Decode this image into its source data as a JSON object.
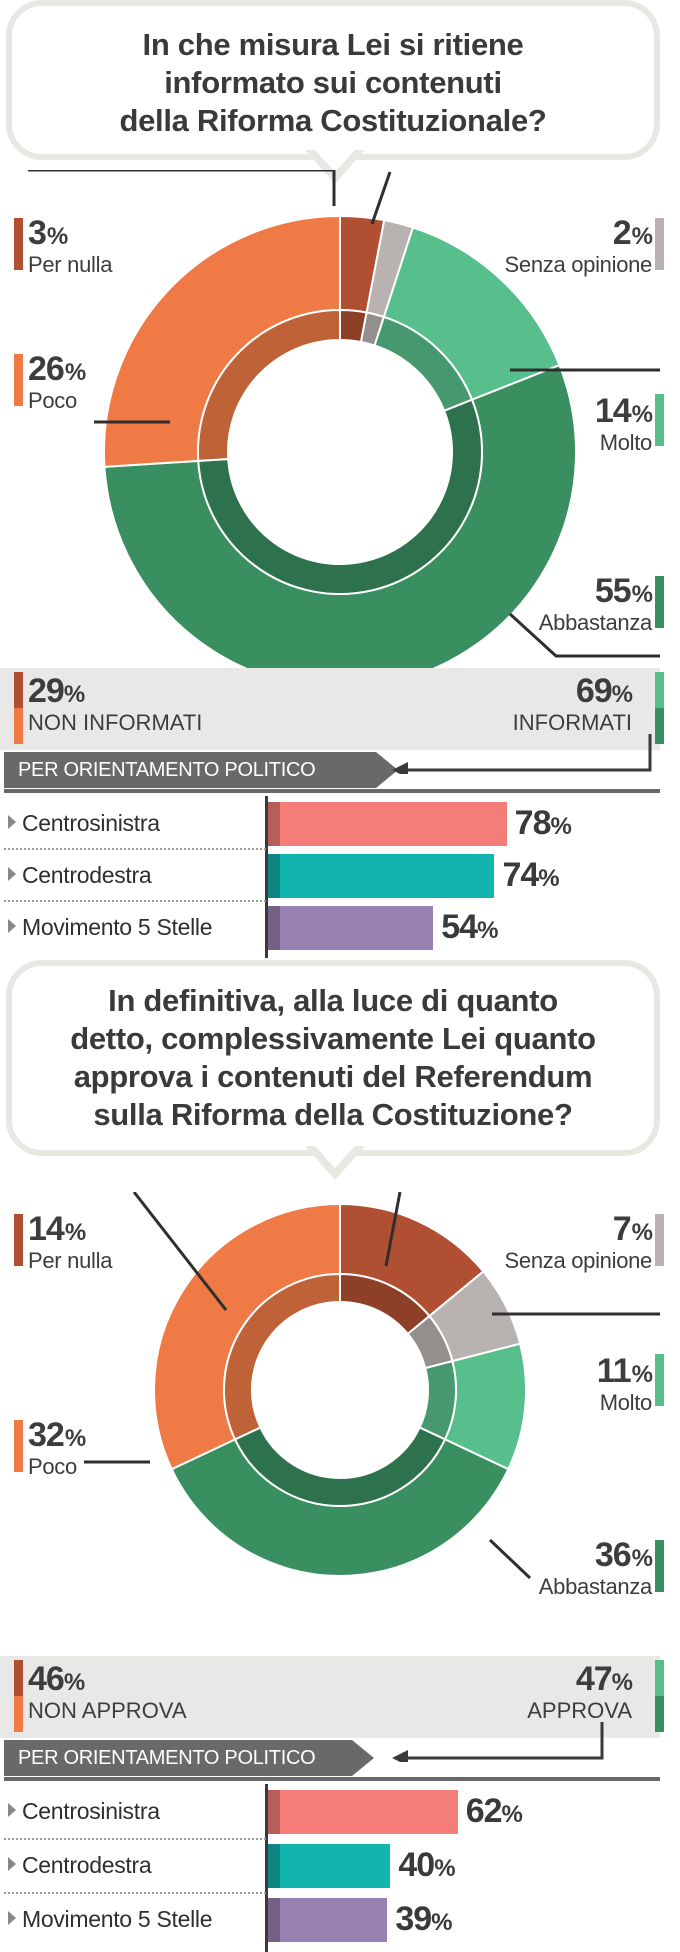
{
  "colors": {
    "per_nulla": "#b14f32",
    "poco": "#ef7a45",
    "molto": "#57bf8b",
    "abbastanza": "#3a8f60",
    "senza_opinione": "#b8b3b0",
    "centrosinistra": "#f47d78",
    "centrodestra": "#12b4ae",
    "m5s": "#9a81b3"
  },
  "q1": {
    "question": "In che misura Lei si ritiene\ninformato sui contenuti\ndella Riforma Costituzionale?",
    "labels": {
      "per_nulla": {
        "value": "3",
        "sign": "%",
        "name": "Per nulla"
      },
      "poco": {
        "value": "26",
        "sign": "%",
        "name": "Poco"
      },
      "senza_opinione": {
        "value": "2",
        "sign": "%",
        "name": "Senza opinione"
      },
      "molto": {
        "value": "14",
        "sign": "%",
        "name": "Molto"
      },
      "abbastanza": {
        "value": "55",
        "sign": "%",
        "name": "Abbastanza"
      }
    },
    "summary_left": {
      "value": "29",
      "sign": "%",
      "name": "NON INFORMATI"
    },
    "summary_right": {
      "value": "69",
      "sign": "%",
      "name": "INFORMATI"
    },
    "orient_title": "PER ORIENTAMENTO POLITICO",
    "bars": [
      {
        "label": "Centrosinistra",
        "value": "78",
        "sign": "%"
      },
      {
        "label": "Centrodestra",
        "value": "74",
        "sign": "%"
      },
      {
        "label": "Movimento 5 Stelle",
        "value": "54",
        "sign": "%"
      }
    ]
  },
  "q2": {
    "question": "In definitiva, alla luce di quanto\ndetto, complessivamente Lei quanto\napprova i contenuti del Referendum\nsulla Riforma della Costituzione?",
    "labels": {
      "per_nulla": {
        "value": "14",
        "sign": "%",
        "name": "Per nulla"
      },
      "poco": {
        "value": "32",
        "sign": "%",
        "name": "Poco"
      },
      "senza_opinione": {
        "value": "7",
        "sign": "%",
        "name": "Senza opinione"
      },
      "molto": {
        "value": "11",
        "sign": "%",
        "name": "Molto"
      },
      "abbastanza": {
        "value": "36",
        "sign": "%",
        "name": "Abbastanza"
      }
    },
    "summary_left": {
      "value": "46",
      "sign": "%",
      "name": "NON APPROVA"
    },
    "summary_right": {
      "value": "47",
      "sign": "%",
      "name": "APPROVA"
    },
    "orient_title": "PER ORIENTAMENTO POLITICO",
    "bars": [
      {
        "label": "Centrosinistra",
        "value": "62",
        "sign": "%"
      },
      {
        "label": "Centrodestra",
        "value": "40",
        "sign": "%"
      },
      {
        "label": "Movimento 5 Stelle",
        "value": "39",
        "sign": "%"
      }
    ]
  },
  "chart_data": [
    {
      "type": "pie",
      "title": "In che misura Lei si ritiene informato sui contenuti della Riforma Costituzionale?",
      "categories": [
        "Per nulla",
        "Senza opinione",
        "Molto",
        "Abbastanza",
        "Poco"
      ],
      "values": [
        3,
        2,
        14,
        55,
        26
      ],
      "groups": [
        {
          "name": "NON INFORMATI",
          "value": 29
        },
        {
          "name": "INFORMATI",
          "value": 69
        }
      ]
    },
    {
      "type": "bar",
      "title": "PER ORIENTAMENTO POLITICO",
      "categories": [
        "Centrosinistra",
        "Centrodestra",
        "Movimento 5 Stelle"
      ],
      "values": [
        78,
        74,
        54
      ],
      "ylim": [
        0,
        100
      ]
    },
    {
      "type": "pie",
      "title": "In definitiva, alla luce di quanto detto, complessivamente Lei quanto approva i contenuti del Referendum sulla Riforma della Costituzione?",
      "categories": [
        "Per nulla",
        "Senza opinione",
        "Molto",
        "Abbastanza",
        "Poco"
      ],
      "values": [
        14,
        7,
        11,
        36,
        32
      ],
      "groups": [
        {
          "name": "NON APPROVA",
          "value": 46
        },
        {
          "name": "APPROVA",
          "value": 47
        }
      ]
    },
    {
      "type": "bar",
      "title": "PER ORIENTAMENTO POLITICO",
      "categories": [
        "Centrosinistra",
        "Centrodestra",
        "Movimento 5 Stelle"
      ],
      "values": [
        62,
        40,
        39
      ],
      "ylim": [
        0,
        100
      ]
    }
  ]
}
